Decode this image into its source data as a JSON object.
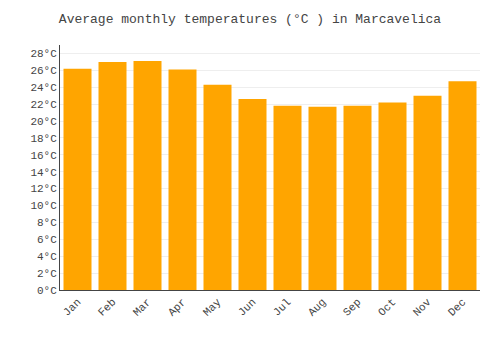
{
  "chart_data": {
    "type": "bar",
    "title": "Average monthly temperatures (°C ) in Marcavelica",
    "categories": [
      "Jan",
      "Feb",
      "Mar",
      "Apr",
      "May",
      "Jun",
      "Jul",
      "Aug",
      "Sep",
      "Oct",
      "Nov",
      "Dec"
    ],
    "values": [
      26.2,
      27.0,
      27.1,
      26.1,
      24.3,
      22.6,
      21.8,
      21.7,
      21.8,
      22.2,
      23.0,
      24.7
    ],
    "color": "#FFA500",
    "ylim": [
      0,
      29
    ],
    "yticks": [
      {
        "value": 0,
        "label": "0°C"
      },
      {
        "value": 2,
        "label": "2°C"
      },
      {
        "value": 4,
        "label": "4°C"
      },
      {
        "value": 6,
        "label": "6°C"
      },
      {
        "value": 8,
        "label": "8°C"
      },
      {
        "value": 10,
        "label": "10°C"
      },
      {
        "value": 12,
        "label": "12°C"
      },
      {
        "value": 14,
        "label": "14°C"
      },
      {
        "value": 16,
        "label": "16°C"
      },
      {
        "value": 18,
        "label": "18°C"
      },
      {
        "value": 20,
        "label": "20°C"
      },
      {
        "value": 22,
        "label": "22°C"
      },
      {
        "value": 24,
        "label": "24°C"
      },
      {
        "value": 26,
        "label": "26°C"
      },
      {
        "value": 28,
        "label": "28°C"
      }
    ],
    "grid": true
  }
}
